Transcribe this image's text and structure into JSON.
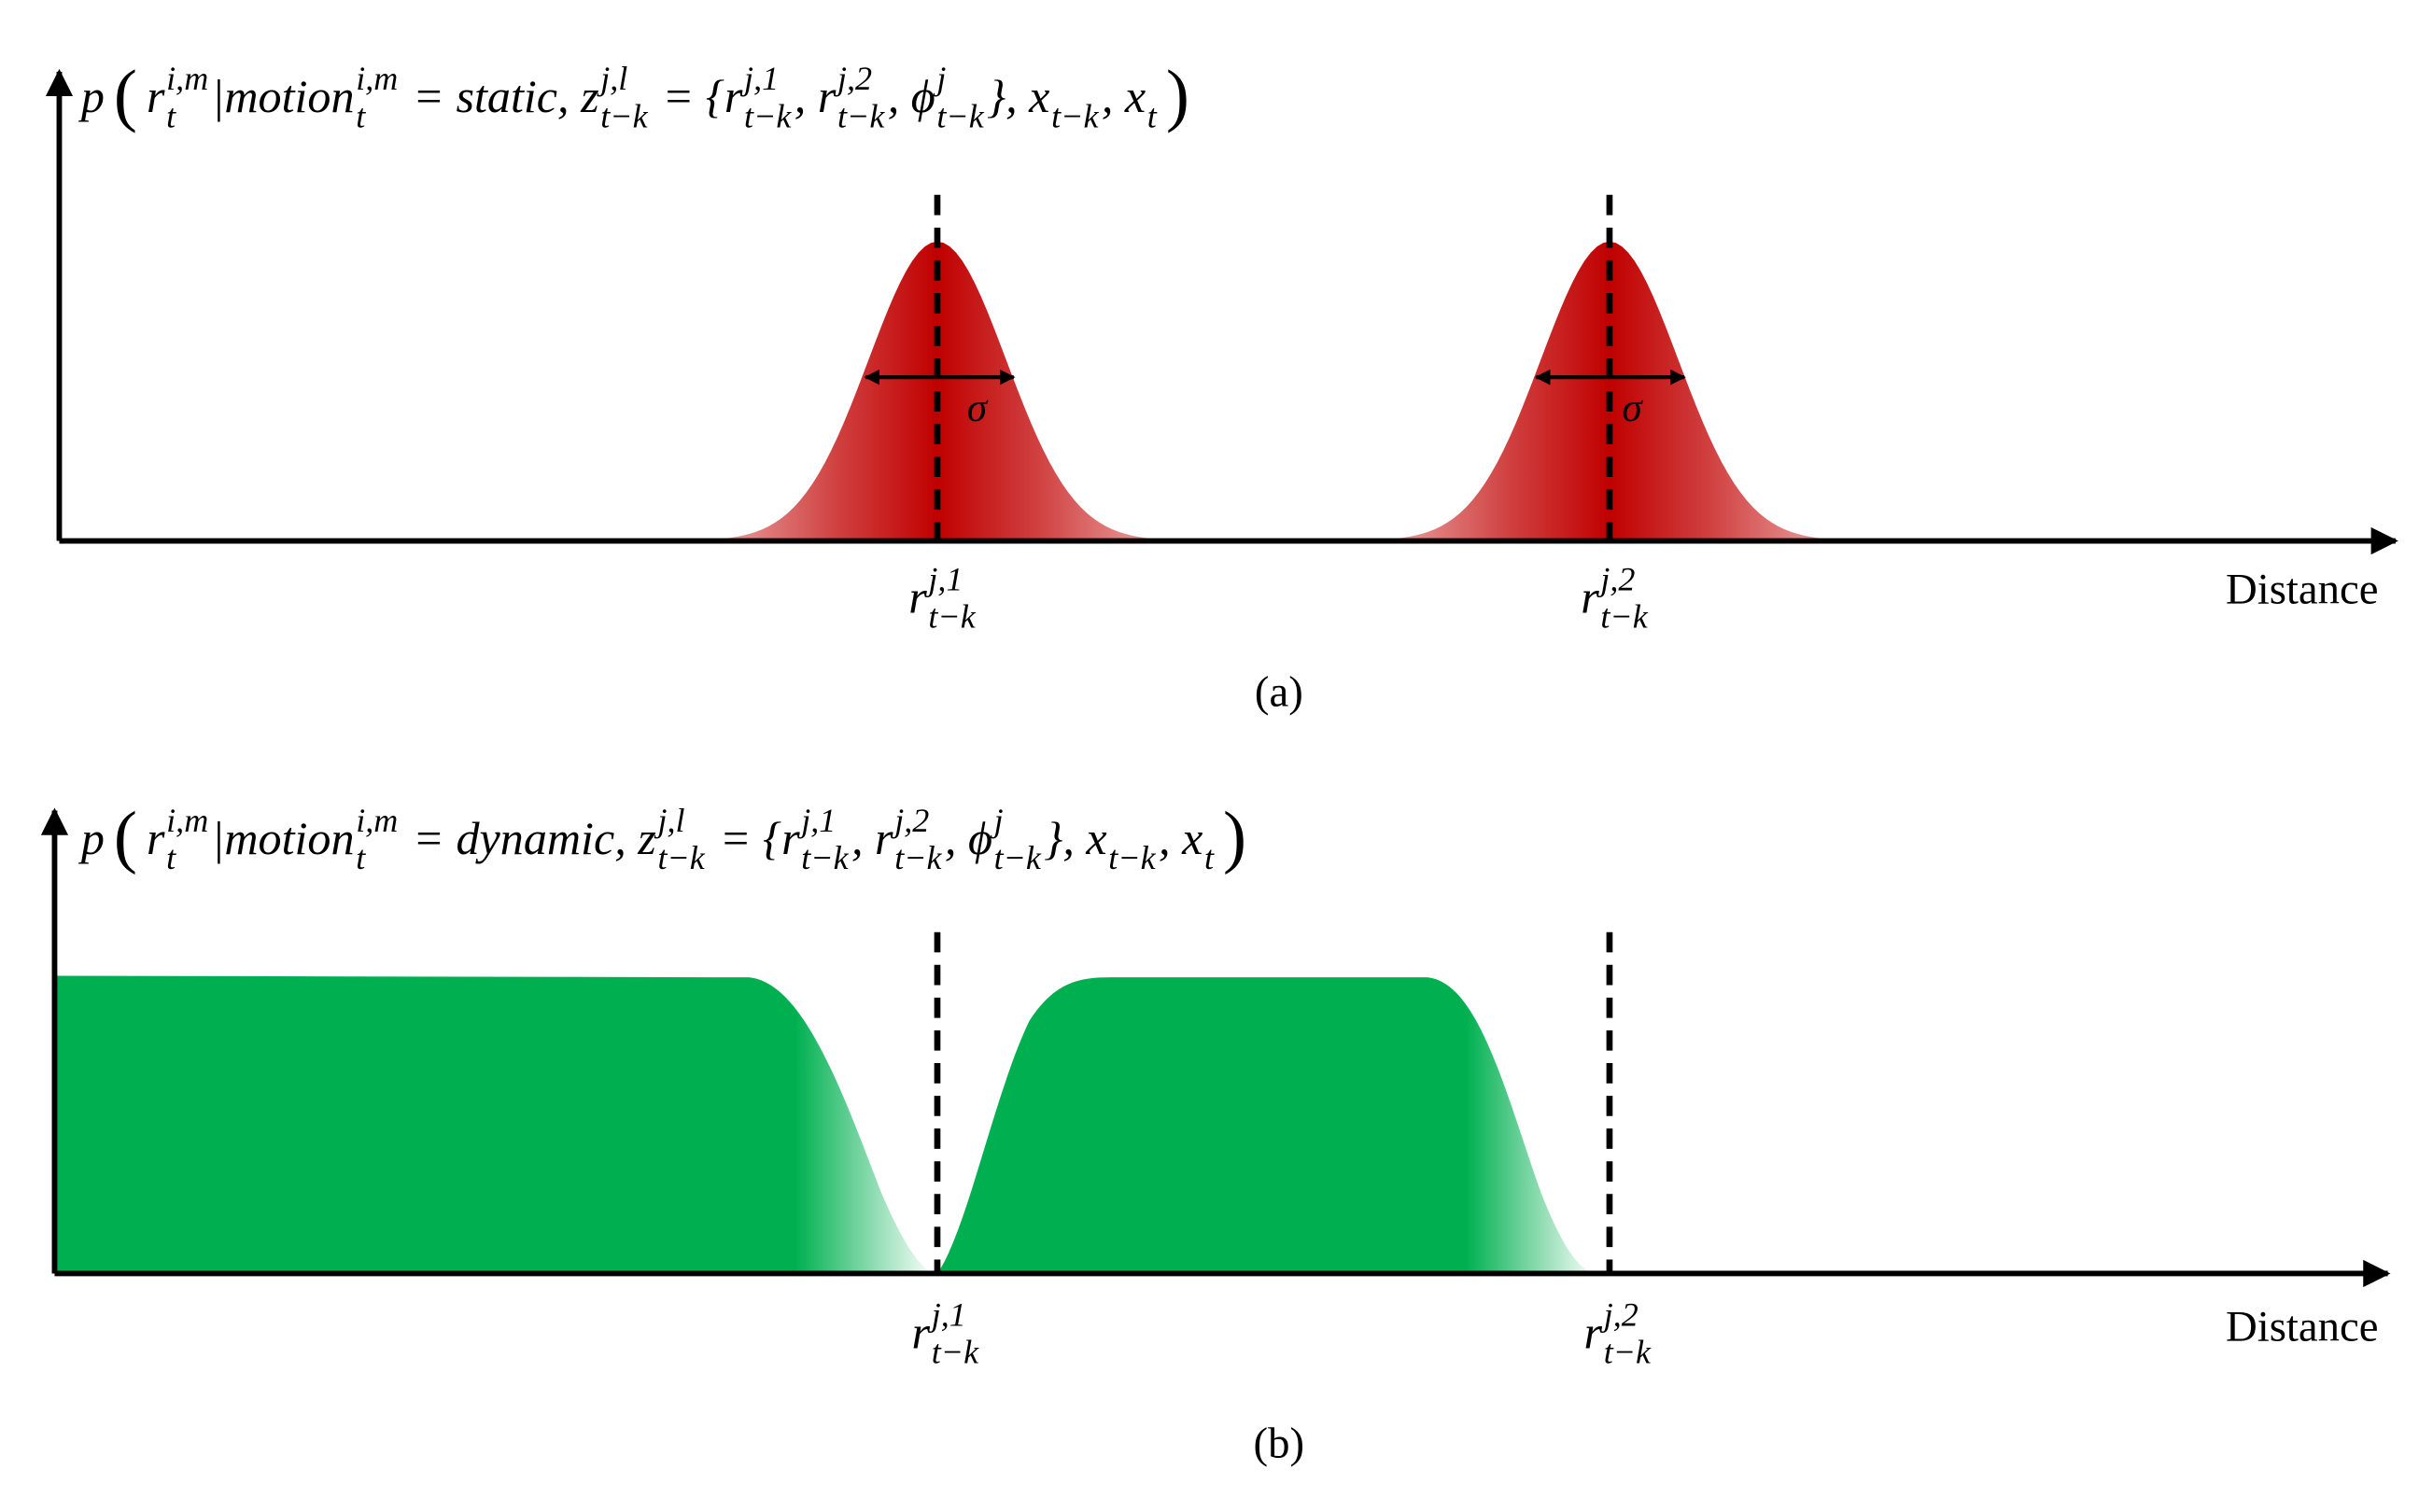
{
  "panel_a": {
    "formula": {
      "lead": "p",
      "open": "(",
      "close": ")",
      "parts": [
        {
          "base": "r",
          "sub": "t",
          "sup": "i,m"
        },
        {
          "base": "|motion",
          "sub": "t",
          "sup": "i,m"
        },
        {
          "base": " = static, z",
          "sub": "t−k",
          "sup": "j,l"
        },
        {
          "base": " = {r",
          "sub": "t−k",
          "sup": "j,1"
        },
        {
          "base": ", r",
          "sub": "t−k",
          "sup": "j,2"
        },
        {
          "base": ", ϕ",
          "sub": "t−k",
          "sup": "j"
        },
        {
          "base": "}, x",
          "sub": "t−k"
        },
        {
          "base": ", x",
          "sub": "t"
        }
      ]
    },
    "peaks": [
      {
        "label": {
          "base": "r",
          "sub": "t−k",
          "sup": "j,1"
        },
        "width_label": "σ"
      },
      {
        "label": {
          "base": "r",
          "sub": "t−k",
          "sup": "j,2"
        },
        "width_label": "σ"
      }
    ],
    "x_axis_label": "Distance",
    "caption": "(a)"
  },
  "panel_b": {
    "formula": {
      "lead": "p",
      "open": "(",
      "close": ")",
      "parts": [
        {
          "base": "r",
          "sub": "t",
          "sup": "i,m"
        },
        {
          "base": "|motion",
          "sub": "t",
          "sup": "i,m"
        },
        {
          "base": " = dynamic, z",
          "sub": "t−k",
          "sup": "j,l"
        },
        {
          "base": " = {r",
          "sub": "t−k",
          "sup": "j,1"
        },
        {
          "base": ", r",
          "sub": "t−k",
          "sup": "j,2"
        },
        {
          "base": ", ϕ",
          "sub": "t−k",
          "sup": "j"
        },
        {
          "base": "}, x",
          "sub": "t−k"
        },
        {
          "base": ", x",
          "sub": "t"
        }
      ]
    },
    "markers": [
      {
        "label": {
          "base": "r",
          "sub": "t−k",
          "sup": "j,1"
        }
      },
      {
        "label": {
          "base": "r",
          "sub": "t−k",
          "sup": "j,2"
        }
      }
    ],
    "x_axis_label": "Distance",
    "caption": "(b)"
  }
}
